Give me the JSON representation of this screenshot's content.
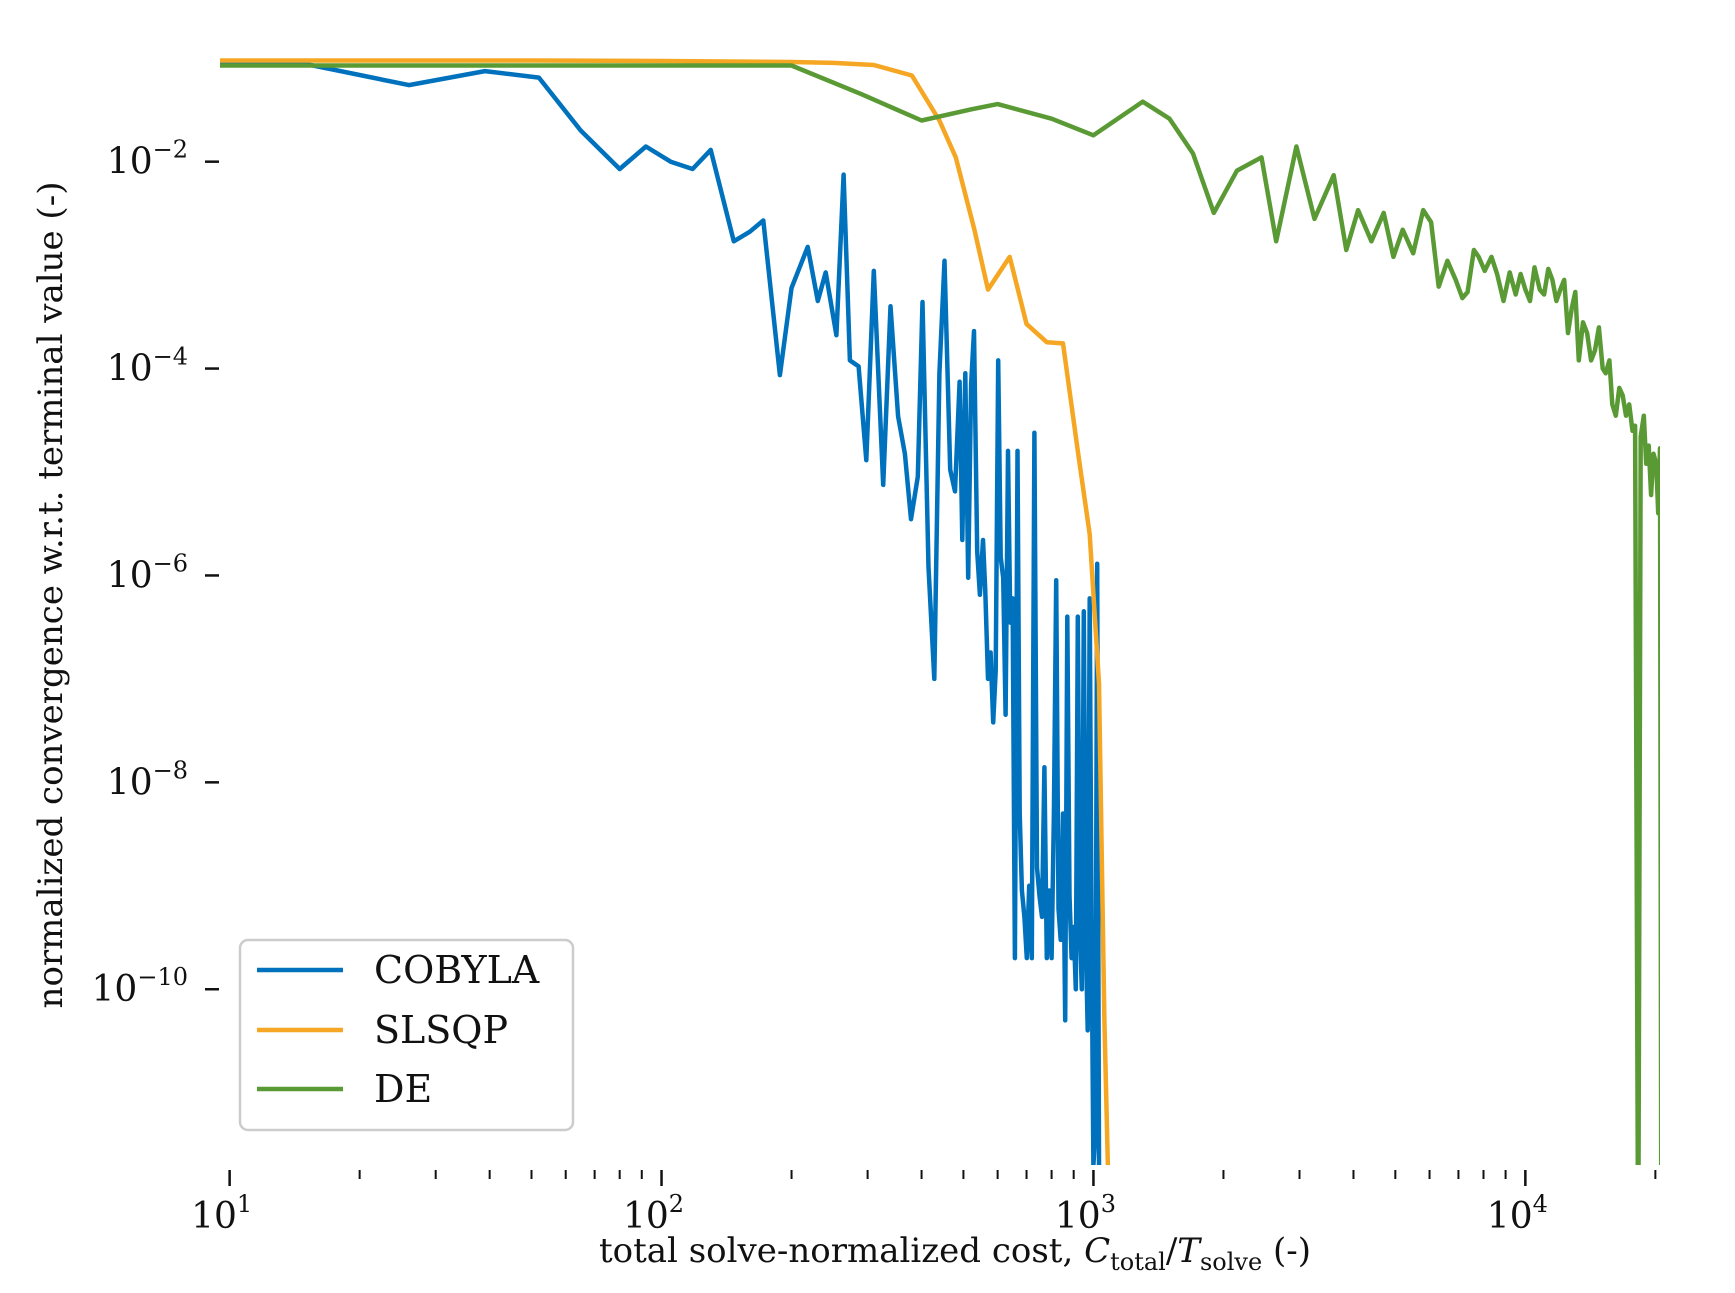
{
  "chart_data": {
    "type": "line",
    "xscale": "log",
    "yscale": "log",
    "xlim": [
      9.5,
      20500
    ],
    "ylim": [
      2e-12,
      0.15
    ],
    "xlabel": {
      "main": "total solve-normalized cost, ",
      "sym1": "C",
      "sub1": "total",
      "slash": "/",
      "sym2": "T",
      "sub2": "solve",
      "tail": " (-)"
    },
    "ylabel": "normalized convergence w.r.t. terminal value (-)",
    "x_ticks": [
      {
        "value": 10,
        "base": "10",
        "exp": "1"
      },
      {
        "value": 100,
        "base": "10",
        "exp": "2"
      },
      {
        "value": 1000,
        "base": "10",
        "exp": "3"
      },
      {
        "value": 10000,
        "base": "10",
        "exp": "4"
      }
    ],
    "y_ticks": [
      {
        "value": 0.01,
        "base": "10",
        "exp": "−2"
      },
      {
        "value": 0.0001,
        "base": "10",
        "exp": "−4"
      },
      {
        "value": 1e-06,
        "base": "10",
        "exp": "−6"
      },
      {
        "value": 1e-08,
        "base": "10",
        "exp": "−8"
      },
      {
        "value": 1e-10,
        "base": "10",
        "exp": "−10"
      }
    ],
    "legend_position": "lower-left",
    "series": [
      {
        "name": "COBYLA",
        "color": "#0072BD",
        "points": [
          [
            9.5,
            0.09
          ],
          [
            15,
            0.088
          ],
          [
            26,
            0.055
          ],
          [
            39,
            0.075
          ],
          [
            52,
            0.065
          ],
          [
            65,
            0.02
          ],
          [
            80,
            0.0085
          ],
          [
            92,
            0.014
          ],
          [
            105,
            0.01
          ],
          [
            118,
            0.0085
          ],
          [
            130,
            0.013
          ],
          [
            147,
            0.0017
          ],
          [
            160,
            0.0021
          ],
          [
            172,
            0.0027
          ],
          [
            188,
            8.65e-05
          ],
          [
            200,
            0.0006
          ],
          [
            218,
            0.0015
          ],
          [
            230,
            0.00045
          ],
          [
            240,
            0.00085
          ],
          [
            254,
            0.00021
          ],
          [
            264,
            0.0075
          ],
          [
            273,
            0.00012
          ],
          [
            286,
            0.000105
          ],
          [
            298,
            1.3e-05
          ],
          [
            310,
            0.00088
          ],
          [
            326,
            7.5e-06
          ],
          [
            339,
            0.0004
          ],
          [
            353,
            3.45e-05
          ],
          [
            366,
            1.5e-05
          ],
          [
            378,
            3.5e-06
          ],
          [
            392,
            9e-06
          ],
          [
            402,
            0.00044
          ],
          [
            415,
            1.2e-06
          ],
          [
            428,
            1e-07
          ],
          [
            440,
            9e-05
          ],
          [
            452,
            0.0011
          ],
          [
            466,
            1.05e-05
          ],
          [
            478,
            6.5e-06
          ],
          [
            490,
            7.45e-05
          ],
          [
            497,
            2.2e-06
          ],
          [
            505,
            9e-05
          ],
          [
            513,
            9.5e-07
          ],
          [
            521,
            7e-05
          ],
          [
            529,
            0.00023
          ],
          [
            538,
            1.7e-06
          ],
          [
            546,
            6.5e-07
          ],
          [
            555,
            2.2e-06
          ],
          [
            562,
            7e-07
          ],
          [
            570,
            1e-07
          ],
          [
            578,
            1.8e-07
          ],
          [
            586,
            3.8e-08
          ],
          [
            594,
            1.2e-07
          ],
          [
            602,
            0.00012
          ],
          [
            610,
            1.5e-06
          ],
          [
            618,
            9.5e-07
          ],
          [
            626,
            4.5e-08
          ],
          [
            634,
            1.6e-05
          ],
          [
            642,
            3.5e-07
          ],
          [
            650,
            6e-07
          ],
          [
            658,
            2e-10
          ],
          [
            667,
            1.6e-05
          ],
          [
            675,
            5e-09
          ],
          [
            683,
            9e-10
          ],
          [
            692,
            5e-10
          ],
          [
            701,
            2e-10
          ],
          [
            710,
            1e-09
          ],
          [
            720,
            2e-10
          ],
          [
            730,
            2.4e-05
          ],
          [
            740,
            1.5e-09
          ],
          [
            750,
            8e-10
          ],
          [
            760,
            5e-10
          ],
          [
            770,
            1.4e-08
          ],
          [
            780,
            2e-10
          ],
          [
            790,
            9e-10
          ],
          [
            800,
            2e-10
          ],
          [
            810,
            5e-09
          ],
          [
            820,
            9e-07
          ],
          [
            830,
            6e-10
          ],
          [
            840,
            3e-10
          ],
          [
            850,
            5e-09
          ],
          [
            860,
            5e-11
          ],
          [
            870,
            4e-07
          ],
          [
            880,
            8e-10
          ],
          [
            890,
            2e-10
          ],
          [
            900,
            4e-10
          ],
          [
            910,
            1e-10
          ],
          [
            920,
            4e-07
          ],
          [
            930,
            4e-10
          ],
          [
            940,
            1e-10
          ],
          [
            950,
            4.5e-07
          ],
          [
            960,
            3e-10
          ],
          [
            970,
            4e-11
          ],
          [
            980,
            6e-07
          ],
          [
            990,
            3e-10
          ],
          [
            1000,
            2e-12
          ],
          [
            1010,
            4e-12
          ],
          [
            1020,
            1.3e-06
          ],
          [
            1030,
            2e-12
          ]
        ]
      },
      {
        "name": "SLSQP",
        "color": "#F5A623",
        "points": [
          [
            9.5,
            0.095
          ],
          [
            20,
            0.095
          ],
          [
            50,
            0.095
          ],
          [
            100,
            0.094
          ],
          [
            200,
            0.092
          ],
          [
            250,
            0.09
          ],
          [
            310,
            0.086
          ],
          [
            380,
            0.068
          ],
          [
            440,
            0.025
          ],
          [
            480,
            0.011
          ],
          [
            530,
            0.0022
          ],
          [
            570,
            0.00058
          ],
          [
            640,
            0.0012
          ],
          [
            700,
            0.00027
          ],
          [
            780,
            0.00018
          ],
          [
            850,
            0.000175
          ],
          [
            920,
            1.6e-05
          ],
          [
            980,
            2.5e-06
          ],
          [
            1030,
            9e-08
          ],
          [
            1060,
            5e-11
          ],
          [
            1085,
            9e-13
          ],
          [
            1095,
            2e-12
          ]
        ]
      },
      {
        "name": "DE",
        "color": "#5A9A35",
        "points": [
          [
            9.5,
            0.085
          ],
          [
            50,
            0.085
          ],
          [
            100,
            0.085
          ],
          [
            200,
            0.085
          ],
          [
            290,
            0.045
          ],
          [
            400,
            0.025
          ],
          [
            520,
            0.032
          ],
          [
            600,
            0.036
          ],
          [
            800,
            0.026
          ],
          [
            1000,
            0.018
          ],
          [
            1300,
            0.038
          ],
          [
            1500,
            0.026
          ],
          [
            1700,
            0.012
          ],
          [
            1900,
            0.0032
          ],
          [
            2150,
            0.0082
          ],
          [
            2450,
            0.011
          ],
          [
            2650,
            0.0017
          ],
          [
            2950,
            0.014
          ],
          [
            3250,
            0.0028
          ],
          [
            3600,
            0.0074
          ],
          [
            3850,
            0.0014
          ],
          [
            4100,
            0.0034
          ],
          [
            4400,
            0.0017
          ],
          [
            4700,
            0.0032
          ],
          [
            4950,
            0.0012
          ],
          [
            5200,
            0.0022
          ],
          [
            5500,
            0.0013
          ],
          [
            5800,
            0.0034
          ],
          [
            6050,
            0.0026
          ],
          [
            6300,
            0.00062
          ],
          [
            6600,
            0.0011
          ],
          [
            6900,
            0.00072
          ],
          [
            7150,
            0.00048
          ],
          [
            7350,
            0.00055
          ],
          [
            7600,
            0.0014
          ],
          [
            7800,
            0.0012
          ],
          [
            8050,
            0.00088
          ],
          [
            8350,
            0.0012
          ],
          [
            8600,
            0.00082
          ],
          [
            8900,
            0.00045
          ],
          [
            9200,
            0.00085
          ],
          [
            9500,
            0.00052
          ],
          [
            9750,
            0.00082
          ],
          [
            10000,
            0.00058
          ],
          [
            10250,
            0.00045
          ],
          [
            10500,
            0.00095
          ],
          [
            10800,
            0.00058
          ],
          [
            11050,
            0.00052
          ],
          [
            11300,
            0.00092
          ],
          [
            11550,
            0.00072
          ],
          [
            11800,
            0.00045
          ],
          [
            12050,
            0.00058
          ],
          [
            12300,
            0.00072
          ],
          [
            12550,
            0.00022
          ],
          [
            12800,
            0.00038
          ],
          [
            13050,
            0.00055
          ],
          [
            13300,
            0.00012
          ],
          [
            13600,
            0.00028
          ],
          [
            13900,
            0.00022
          ],
          [
            14200,
            0.00012
          ],
          [
            14500,
            0.00015
          ],
          [
            14800,
            0.00025
          ],
          [
            15100,
            0.0001
          ],
          [
            15350,
            9e-05
          ],
          [
            15650,
            0.00012
          ],
          [
            15900,
            4.5e-05
          ],
          [
            16200,
            3.5e-05
          ],
          [
            16500,
            6.5e-05
          ],
          [
            16800,
            5.5e-05
          ],
          [
            17100,
            3.5e-05
          ],
          [
            17400,
            4.5e-05
          ],
          [
            17700,
            2.5e-05
          ],
          [
            17950,
            2.8e-05
          ],
          [
            18250,
            1.5e-13
          ],
          [
            18500,
            2.2e-05
          ],
          [
            18800,
            3.5e-05
          ],
          [
            19050,
            1.2e-05
          ],
          [
            19300,
            1.8e-05
          ],
          [
            19550,
            6e-06
          ],
          [
            19800,
            1.5e-05
          ],
          [
            20100,
            1.2e-05
          ],
          [
            20300,
            4e-06
          ],
          [
            20500,
            1.7e-05
          ],
          [
            20650,
            1.5e-13
          ]
        ]
      }
    ]
  }
}
